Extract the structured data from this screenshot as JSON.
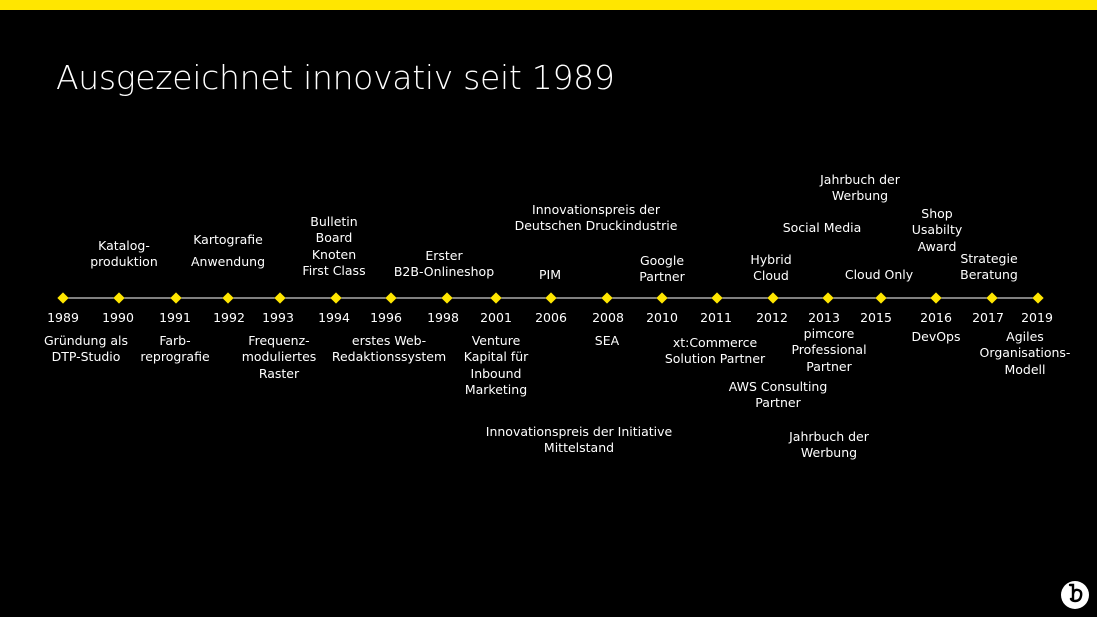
{
  "title": "Ausgezeichnet innovativ seit 1989",
  "events": [
    {
      "year": "1989",
      "below": [
        "Gründung als\nDTP-Studio"
      ]
    },
    {
      "year": "1990",
      "above": [
        "Katalog-\nproduktion"
      ]
    },
    {
      "year": "1991",
      "below": [
        "Farb-\nreprografie"
      ]
    },
    {
      "year": "1992",
      "above": [
        "Kartografie",
        "Anwendung"
      ]
    },
    {
      "year": "1993",
      "below": [
        "Frequenz-\nmoduliertes\nRaster"
      ]
    },
    {
      "year": "1994",
      "above": [
        "Bulletin\nBoard\nKnoten\nFirst Class"
      ]
    },
    {
      "year": "1996",
      "below": [
        "erstes Web-\nRedaktionssystem"
      ]
    },
    {
      "year": "1998",
      "above": [
        "Erster\nB2B-Onlineshop"
      ]
    },
    {
      "year": "2001",
      "below": [
        "Venture\nKapital für\nInbound\nMarketing",
        "Innovationspreis der Initiative\nMittelstand"
      ]
    },
    {
      "year": "2006",
      "above": [
        "PIM",
        "Innovationspreis der\nDeutschen Druckindustrie"
      ]
    },
    {
      "year": "2008",
      "below": [
        "SEA"
      ]
    },
    {
      "year": "2010",
      "above": [
        "Google\nPartner"
      ]
    },
    {
      "year": "2011",
      "below": [
        "xt:Commerce\nSolution Partner",
        "AWS Consulting\nPartner"
      ]
    },
    {
      "year": "2012",
      "above": [
        "Hybrid\nCloud"
      ]
    },
    {
      "year": "2013",
      "above": [
        "Social Media",
        "Jahrbuch der\nWerbung"
      ],
      "below": [
        "pimcore\nProfessional\nPartner",
        "Jahrbuch der\nWerbung"
      ]
    },
    {
      "year": "2015",
      "above": [
        "Cloud Only"
      ]
    },
    {
      "year": "2016",
      "above": [
        "Shop\nUsabilty\nAward"
      ],
      "below": [
        "DevOps"
      ]
    },
    {
      "year": "2017",
      "above": [
        "Strategie\nBeratung"
      ]
    },
    {
      "year": "2019",
      "below": [
        "Agiles\nOrganisations-\nModell"
      ]
    }
  ]
}
